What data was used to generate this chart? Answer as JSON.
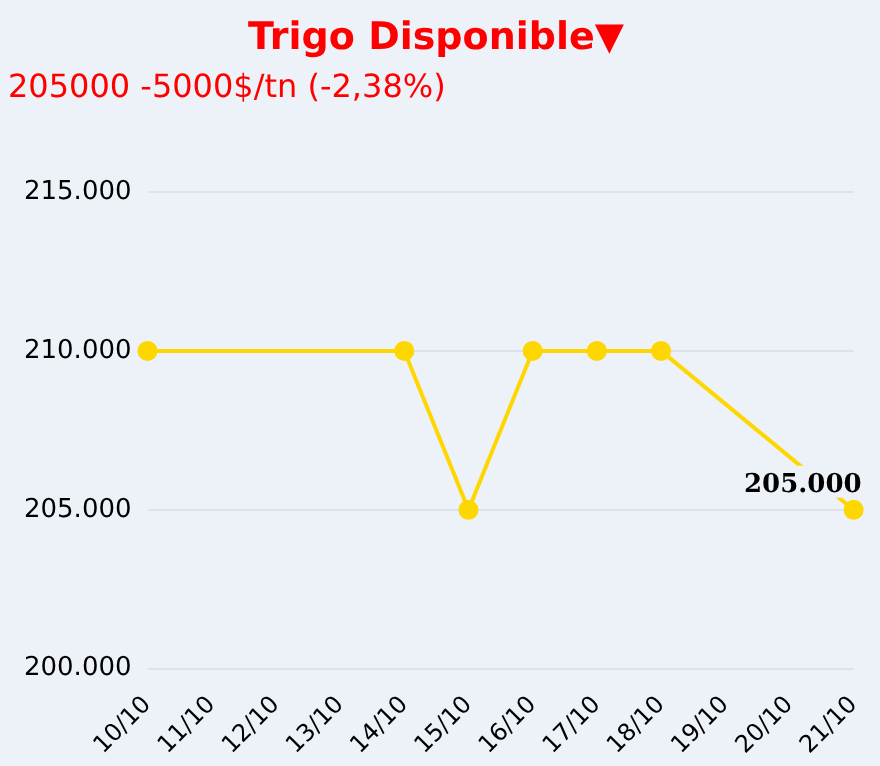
{
  "chart_data": {
    "type": "line",
    "title": "Trigo Disponible▼",
    "subtitle": "205000 -5000$/tn (-2,38%)",
    "categories": [
      "10/10",
      "11/10",
      "12/10",
      "13/10",
      "14/10",
      "15/10",
      "16/10",
      "17/10",
      "18/10",
      "19/10",
      "20/10",
      "21/10"
    ],
    "series": [
      {
        "color": "#ffd700",
        "values": [
          210000,
          null,
          null,
          null,
          210000,
          205000,
          210000,
          210000,
          210000,
          null,
          null,
          205000
        ],
        "value_labels": [
          null,
          null,
          null,
          null,
          null,
          null,
          null,
          null,
          null,
          null,
          null,
          "205.000"
        ]
      }
    ],
    "ylim": [
      200000,
      215000
    ],
    "yticks": [
      {
        "value": 200000,
        "label": "200.000"
      },
      {
        "value": 205000,
        "label": "205.000"
      },
      {
        "value": 210000,
        "label": "210.000"
      },
      {
        "value": 215000,
        "label": "215.000"
      }
    ],
    "grid": "y",
    "legend": false,
    "marker": "circle",
    "line_style": "solid"
  }
}
